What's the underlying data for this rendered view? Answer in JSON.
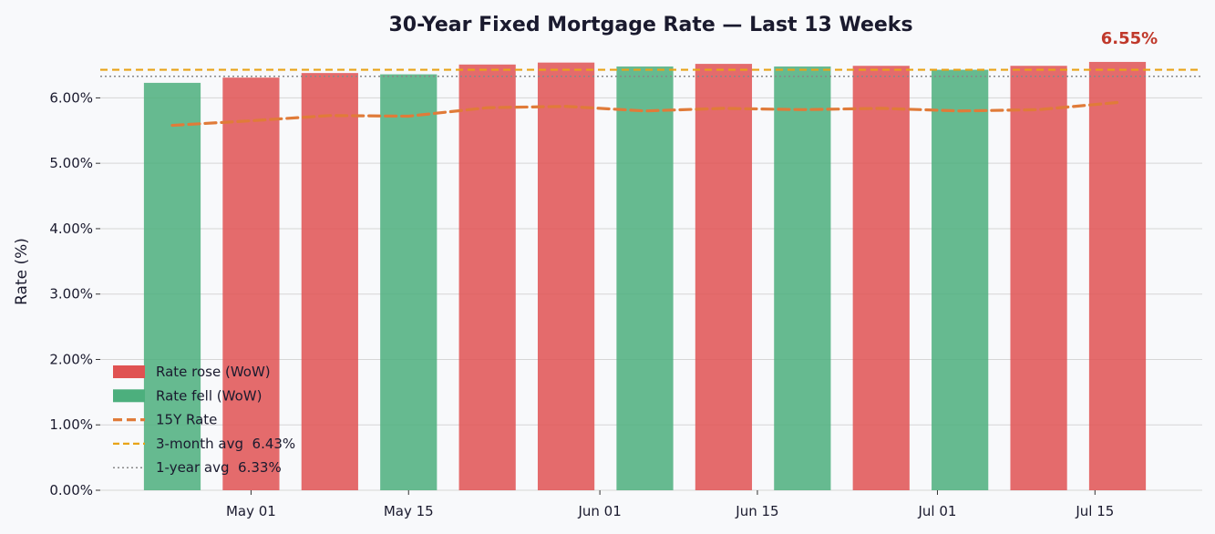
{
  "chart_data": {
    "type": "bar",
    "title": "30-Year Fixed Mortgage Rate — Last 13 Weeks",
    "ylabel": "Rate (%)",
    "xlabel": "",
    "ylim": [
      0,
      6.8
    ],
    "y_ticks": [
      0,
      1,
      2,
      3,
      4,
      5,
      6
    ],
    "y_tick_format": "percent_2dp",
    "x": [
      "2024-04-24",
      "2024-05-01",
      "2024-05-08",
      "2024-05-15",
      "2024-05-22",
      "2024-05-29",
      "2024-06-05",
      "2024-06-12",
      "2024-06-19",
      "2024-06-26",
      "2024-07-03",
      "2024-07-10",
      "2024-07-17"
    ],
    "x_tick_labels": [
      {
        "date": "2024-05-01",
        "label": "May 01"
      },
      {
        "date": "2024-05-15",
        "label": "May 15"
      },
      {
        "date": "2024-06-01",
        "label": "Jun 01"
      },
      {
        "date": "2024-06-15",
        "label": "Jun 15"
      },
      {
        "date": "2024-07-01",
        "label": "Jul 01"
      },
      {
        "date": "2024-07-15",
        "label": "Jul 15"
      }
    ],
    "series": [
      {
        "name": "30Y Rate",
        "type": "bar",
        "values": [
          6.23,
          6.31,
          6.38,
          6.36,
          6.51,
          6.54,
          6.48,
          6.52,
          6.48,
          6.49,
          6.43,
          6.49,
          6.55
        ],
        "direction": [
          "fell",
          "rose",
          "rose",
          "fell",
          "rose",
          "rose",
          "fell",
          "rose",
          "fell",
          "rose",
          "fell",
          "rose",
          "rose"
        ]
      },
      {
        "name": "15Y Rate",
        "type": "line",
        "style": "dashed",
        "values": [
          5.58,
          5.65,
          5.73,
          5.72,
          5.85,
          5.87,
          5.8,
          5.84,
          5.82,
          5.84,
          5.8,
          5.82,
          5.93
        ]
      }
    ],
    "reference_lines": [
      {
        "name": "3-month avg",
        "value": 6.43,
        "style": "dashed",
        "color": "#e8a317"
      },
      {
        "name": "1-year avg",
        "value": 6.33,
        "style": "dotted",
        "color": "#888888"
      }
    ],
    "colors": {
      "rose": "#e05252",
      "fell": "#4caf7d",
      "line_15y": "#e07b39",
      "callout": "#c0392b"
    },
    "legend": {
      "position": "lower-left",
      "entries": [
        {
          "label": "Rate rose (WoW)",
          "kind": "rose"
        },
        {
          "label": "Rate fell (WoW)",
          "kind": "fell"
        },
        {
          "label": "15Y Rate",
          "kind": "line_15y"
        },
        {
          "label": "3-month avg  6.43%",
          "kind": "avg3"
        },
        {
          "label": "1-year avg  6.33%",
          "kind": "avg1y"
        }
      ]
    },
    "annotations": [
      {
        "text": "6.55%",
        "anchor": "last_bar",
        "color": "#c0392b"
      }
    ],
    "grid": "y"
  }
}
